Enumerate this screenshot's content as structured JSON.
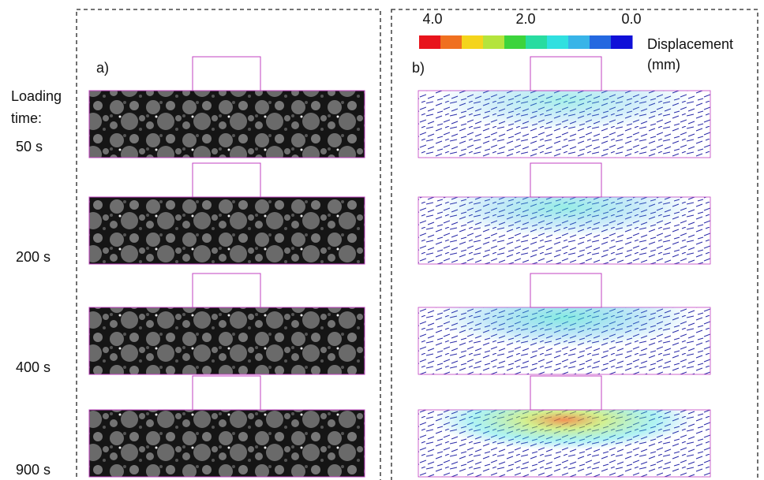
{
  "panel_a": {
    "label": "a)",
    "loading_label": [
      "Loading",
      "time:"
    ],
    "times": [
      "50 s",
      "200 s",
      "400 s",
      "900 s"
    ]
  },
  "panel_b": {
    "label": "b)"
  },
  "colorbar": {
    "ticks": [
      "4.0",
      "2.0",
      "0.0"
    ],
    "title": [
      "Displacement",
      "(mm)"
    ],
    "colors": [
      "#e8141c",
      "#f07020",
      "#f4d41c",
      "#b4e43c",
      "#3cd43c",
      "#28dca0",
      "#30e0e0",
      "#38b4e8",
      "#2468e0",
      "#1010d8"
    ]
  }
}
